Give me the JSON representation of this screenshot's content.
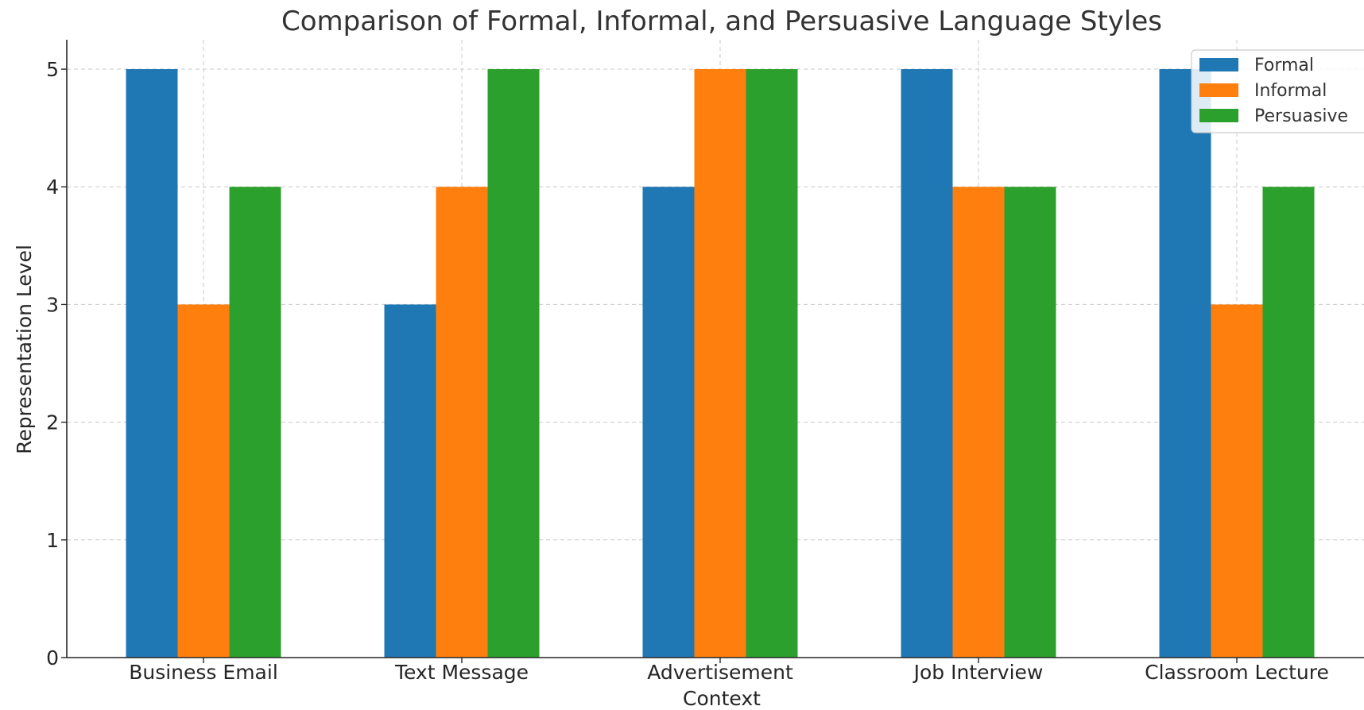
{
  "chart_data": {
    "type": "bar",
    "title": "Comparison of Formal, Informal, and Persuasive Language Styles",
    "xlabel": "Context",
    "ylabel": "Representation Level",
    "categories": [
      "Business Email",
      "Text Message",
      "Advertisement",
      "Job Interview",
      "Classroom Lecture"
    ],
    "series": [
      {
        "name": "Formal",
        "values": [
          5,
          3,
          4,
          5,
          5
        ],
        "color": "#1f77b4"
      },
      {
        "name": "Informal",
        "values": [
          3,
          4,
          5,
          4,
          3
        ],
        "color": "#ff7f0e"
      },
      {
        "name": "Persuasive",
        "values": [
          4,
          5,
          5,
          4,
          4
        ],
        "color": "#2ca02c"
      }
    ],
    "ylim": [
      0,
      5.25
    ],
    "yticks": [
      0,
      1,
      2,
      3,
      4,
      5
    ],
    "grid": true,
    "legend_position": "top-right"
  }
}
